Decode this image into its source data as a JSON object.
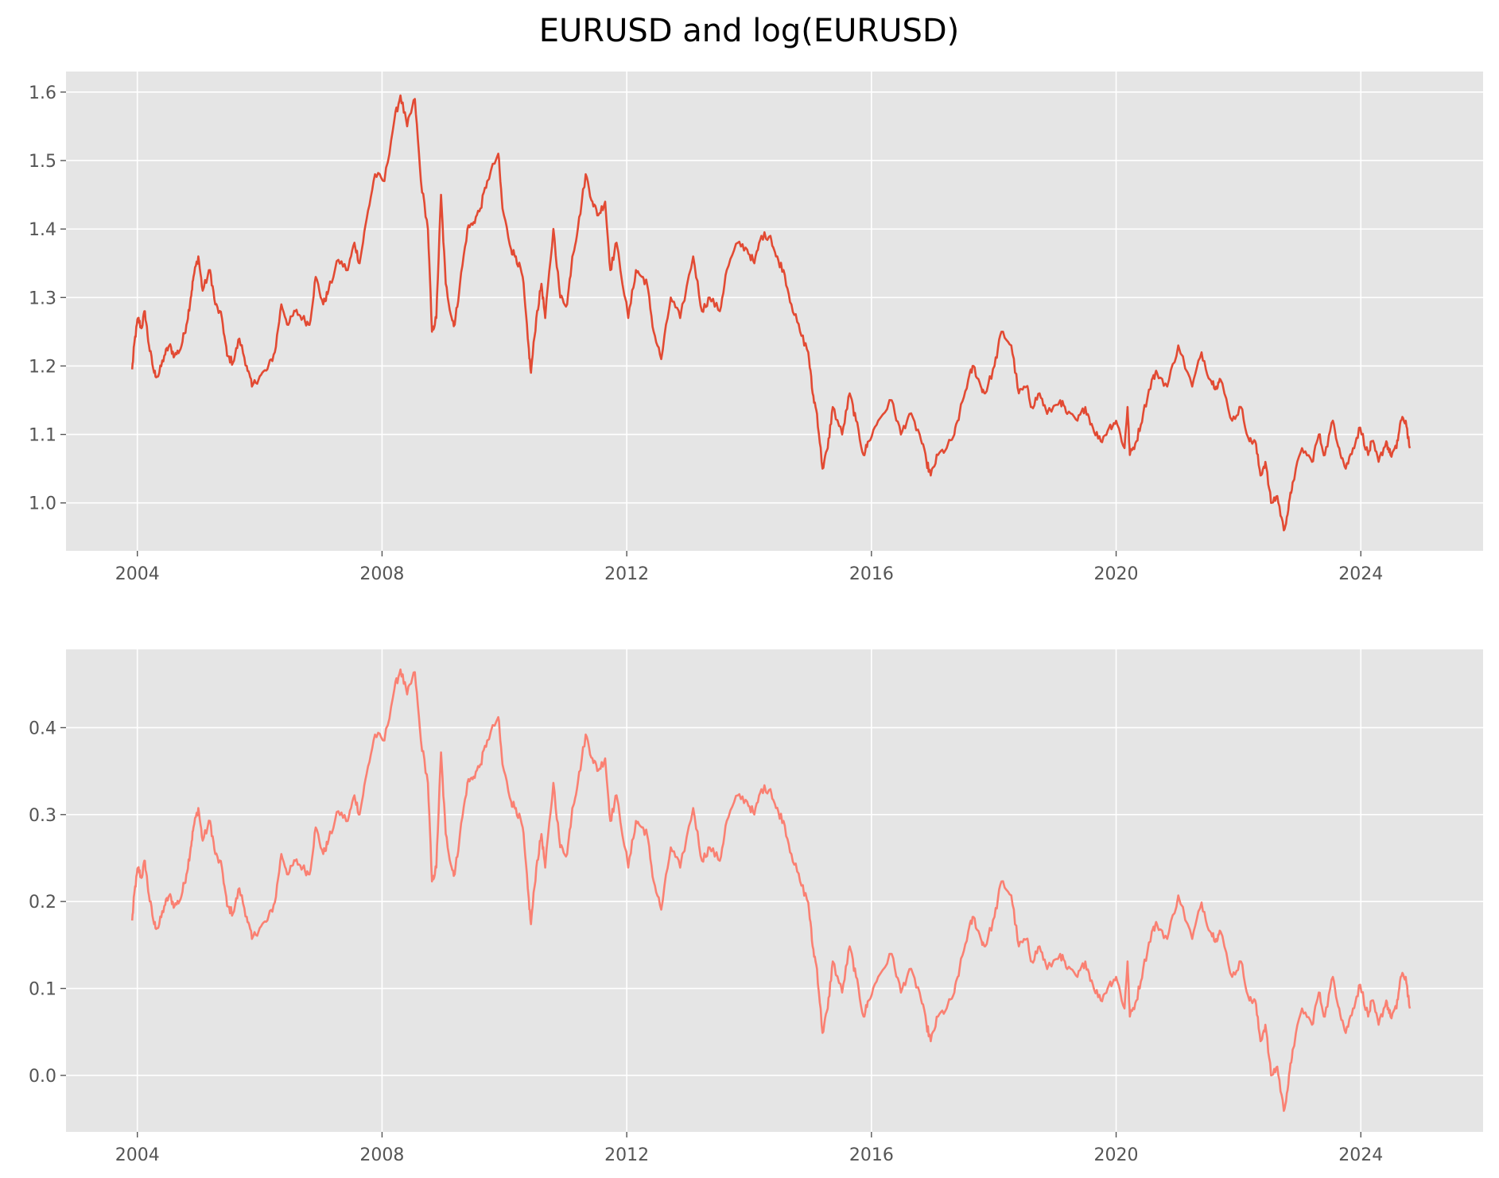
{
  "figure": {
    "title": "EURUSD and log(EURUSD)"
  },
  "chart_data": [
    {
      "type": "line",
      "series": [
        {
          "values": [
            [
              "2003-12-01",
              1.195
            ],
            [
              "2003-12-15",
              1.235
            ],
            [
              "2004-01-05",
              1.27
            ],
            [
              "2004-01-25",
              1.255
            ],
            [
              "2004-02-15",
              1.28
            ],
            [
              "2004-03-10",
              1.23
            ],
            [
              "2004-04-10",
              1.19
            ],
            [
              "2004-05-05",
              1.185
            ],
            [
              "2004-06-10",
              1.215
            ],
            [
              "2004-07-10",
              1.23
            ],
            [
              "2004-08-10",
              1.215
            ],
            [
              "2004-09-15",
              1.225
            ],
            [
              "2004-10-20",
              1.26
            ],
            [
              "2004-11-15",
              1.3
            ],
            [
              "2004-12-01",
              1.33
            ],
            [
              "2004-12-30",
              1.36
            ],
            [
              "2005-01-25",
              1.31
            ],
            [
              "2005-03-10",
              1.34
            ],
            [
              "2005-04-10",
              1.29
            ],
            [
              "2005-05-20",
              1.27
            ],
            [
              "2005-06-20",
              1.215
            ],
            [
              "2005-07-25",
              1.205
            ],
            [
              "2005-09-01",
              1.24
            ],
            [
              "2005-10-15",
              1.2
            ],
            [
              "2005-11-15",
              1.17
            ],
            [
              "2006-01-01",
              1.185
            ],
            [
              "2006-02-15",
              1.195
            ],
            [
              "2006-04-01",
              1.22
            ],
            [
              "2006-05-10",
              1.29
            ],
            [
              "2006-06-20",
              1.26
            ],
            [
              "2006-08-01",
              1.28
            ],
            [
              "2006-09-15",
              1.27
            ],
            [
              "2006-10-25",
              1.26
            ],
            [
              "2006-12-01",
              1.33
            ],
            [
              "2007-01-15",
              1.29
            ],
            [
              "2007-02-15",
              1.31
            ],
            [
              "2007-04-15",
              1.355
            ],
            [
              "2007-06-10",
              1.34
            ],
            [
              "2007-07-20",
              1.38
            ],
            [
              "2007-08-20",
              1.35
            ],
            [
              "2007-10-01",
              1.415
            ],
            [
              "2007-11-20",
              1.48
            ],
            [
              "2008-01-15",
              1.47
            ],
            [
              "2008-03-15",
              1.56
            ],
            [
              "2008-04-20",
              1.595
            ],
            [
              "2008-05-30",
              1.55
            ],
            [
              "2008-07-15",
              1.59
            ],
            [
              "2008-08-20",
              1.47
            ],
            [
              "2008-10-01",
              1.4
            ],
            [
              "2008-10-25",
              1.25
            ],
            [
              "2008-11-20",
              1.27
            ],
            [
              "2008-12-18",
              1.45
            ],
            [
              "2009-01-15",
              1.32
            ],
            [
              "2009-02-20",
              1.27
            ],
            [
              "2009-03-10",
              1.26
            ],
            [
              "2009-04-10",
              1.32
            ],
            [
              "2009-05-25",
              1.4
            ],
            [
              "2009-07-01",
              1.41
            ],
            [
              "2009-08-10",
              1.43
            ],
            [
              "2009-09-20",
              1.47
            ],
            [
              "2009-11-25",
              1.51
            ],
            [
              "2009-12-20",
              1.43
            ],
            [
              "2010-02-10",
              1.37
            ],
            [
              "2010-03-10",
              1.36
            ],
            [
              "2010-04-20",
              1.33
            ],
            [
              "2010-05-20",
              1.24
            ],
            [
              "2010-06-08",
              1.19
            ],
            [
              "2010-07-10",
              1.27
            ],
            [
              "2010-08-10",
              1.32
            ],
            [
              "2010-09-01",
              1.27
            ],
            [
              "2010-10-20",
              1.4
            ],
            [
              "2010-11-30",
              1.3
            ],
            [
              "2011-01-10",
              1.29
            ],
            [
              "2011-02-10",
              1.36
            ],
            [
              "2011-03-15",
              1.4
            ],
            [
              "2011-05-01",
              1.48
            ],
            [
              "2011-06-10",
              1.44
            ],
            [
              "2011-07-15",
              1.42
            ],
            [
              "2011-08-25",
              1.44
            ],
            [
              "2011-09-25",
              1.34
            ],
            [
              "2011-11-01",
              1.38
            ],
            [
              "2012-01-10",
              1.27
            ],
            [
              "2012-02-25",
              1.34
            ],
            [
              "2012-04-01",
              1.33
            ],
            [
              "2012-05-01",
              1.32
            ],
            [
              "2012-06-10",
              1.25
            ],
            [
              "2012-07-25",
              1.21
            ],
            [
              "2012-09-20",
              1.3
            ],
            [
              "2012-11-15",
              1.27
            ],
            [
              "2013-02-01",
              1.36
            ],
            [
              "2013-03-25",
              1.28
            ],
            [
              "2013-05-10",
              1.3
            ],
            [
              "2013-07-10",
              1.28
            ],
            [
              "2013-08-20",
              1.34
            ],
            [
              "2013-10-25",
              1.38
            ],
            [
              "2013-12-20",
              1.37
            ],
            [
              "2014-02-01",
              1.35
            ],
            [
              "2014-03-15",
              1.39
            ],
            [
              "2014-05-08",
              1.39
            ],
            [
              "2014-06-10",
              1.36
            ],
            [
              "2014-07-25",
              1.34
            ],
            [
              "2014-09-10",
              1.29
            ],
            [
              "2014-11-01",
              1.25
            ],
            [
              "2014-12-20",
              1.22
            ],
            [
              "2015-01-15",
              1.16
            ],
            [
              "2015-02-10",
              1.13
            ],
            [
              "2015-03-15",
              1.05
            ],
            [
              "2015-04-15",
              1.08
            ],
            [
              "2015-05-15",
              1.14
            ],
            [
              "2015-07-10",
              1.1
            ],
            [
              "2015-08-24",
              1.16
            ],
            [
              "2015-10-01",
              1.12
            ],
            [
              "2015-11-15",
              1.07
            ],
            [
              "2015-12-15",
              1.09
            ],
            [
              "2016-02-10",
              1.12
            ],
            [
              "2016-05-01",
              1.15
            ],
            [
              "2016-06-25",
              1.1
            ],
            [
              "2016-08-15",
              1.13
            ],
            [
              "2016-10-15",
              1.1
            ],
            [
              "2016-11-25",
              1.06
            ],
            [
              "2016-12-20",
              1.04
            ],
            [
              "2017-02-01",
              1.07
            ],
            [
              "2017-03-25",
              1.08
            ],
            [
              "2017-05-10",
              1.1
            ],
            [
              "2017-06-10",
              1.13
            ],
            [
              "2017-08-01",
              1.18
            ],
            [
              "2017-09-01",
              1.2
            ],
            [
              "2017-10-15",
              1.17
            ],
            [
              "2017-11-10",
              1.16
            ],
            [
              "2018-01-05",
              1.2
            ],
            [
              "2018-02-15",
              1.25
            ],
            [
              "2018-04-15",
              1.23
            ],
            [
              "2018-05-30",
              1.16
            ],
            [
              "2018-07-15",
              1.17
            ],
            [
              "2018-08-15",
              1.14
            ],
            [
              "2018-10-01",
              1.16
            ],
            [
              "2018-11-15",
              1.13
            ],
            [
              "2019-02-01",
              1.15
            ],
            [
              "2019-03-15",
              1.13
            ],
            [
              "2019-05-15",
              1.12
            ],
            [
              "2019-07-01",
              1.14
            ],
            [
              "2019-08-15",
              1.11
            ],
            [
              "2019-10-01",
              1.09
            ],
            [
              "2019-11-20",
              1.11
            ],
            [
              "2020-01-01",
              1.12
            ],
            [
              "2020-02-20",
              1.08
            ],
            [
              "2020-03-09",
              1.14
            ],
            [
              "2020-03-23",
              1.07
            ],
            [
              "2020-05-01",
              1.09
            ],
            [
              "2020-06-10",
              1.13
            ],
            [
              "2020-08-01",
              1.18
            ],
            [
              "2020-09-01",
              1.19
            ],
            [
              "2020-11-01",
              1.17
            ],
            [
              "2021-01-06",
              1.23
            ],
            [
              "2021-03-30",
              1.17
            ],
            [
              "2021-05-25",
              1.22
            ],
            [
              "2021-07-15",
              1.18
            ],
            [
              "2021-08-20",
              1.17
            ],
            [
              "2021-09-15",
              1.18
            ],
            [
              "2021-11-24",
              1.12
            ],
            [
              "2022-01-15",
              1.14
            ],
            [
              "2022-03-07",
              1.09
            ],
            [
              "2022-04-10",
              1.09
            ],
            [
              "2022-05-12",
              1.04
            ],
            [
              "2022-06-10",
              1.06
            ],
            [
              "2022-07-14",
              1.0
            ],
            [
              "2022-08-20",
              1.01
            ],
            [
              "2022-09-28",
              0.96
            ],
            [
              "2022-10-25",
              0.99
            ],
            [
              "2022-11-20",
              1.03
            ],
            [
              "2023-01-15",
              1.08
            ],
            [
              "2023-03-15",
              1.06
            ],
            [
              "2023-04-25",
              1.1
            ],
            [
              "2023-05-31",
              1.07
            ],
            [
              "2023-07-18",
              1.12
            ],
            [
              "2023-08-25",
              1.08
            ],
            [
              "2023-10-03",
              1.05
            ],
            [
              "2023-11-15",
              1.08
            ],
            [
              "2023-12-28",
              1.11
            ],
            [
              "2024-02-14",
              1.07
            ],
            [
              "2024-03-08",
              1.09
            ],
            [
              "2024-04-16",
              1.06
            ],
            [
              "2024-06-01",
              1.09
            ],
            [
              "2024-06-26",
              1.07
            ],
            [
              "2024-08-01",
              1.08
            ],
            [
              "2024-08-26",
              1.12
            ],
            [
              "2024-09-25",
              1.12
            ],
            [
              "2024-10-20",
              1.08
            ]
          ]
        }
      ],
      "xlim": [
        "2002-11-01",
        "2025-12-31"
      ],
      "ylim": [
        0.93,
        1.63
      ],
      "x_ticks": [
        "2004",
        "2008",
        "2012",
        "2016",
        "2020",
        "2024"
      ],
      "y_ticks": [
        "1.0",
        "1.1",
        "1.2",
        "1.3",
        "1.4",
        "1.5",
        "1.6"
      ],
      "grid": true,
      "colors": {
        "line": "#E24A33",
        "panel": "#E5E5E5",
        "grid": "#FFFFFF",
        "tick_text": "#555555"
      }
    },
    {
      "type": "line",
      "series": [
        {
          "transform": "natural log of the top panel's EURUSD values",
          "values": []
        }
      ],
      "xlim": [
        "2002-11-01",
        "2025-12-31"
      ],
      "ylim": [
        -0.065,
        0.49
      ],
      "x_ticks": [
        "2004",
        "2008",
        "2012",
        "2016",
        "2020",
        "2024"
      ],
      "y_ticks": [
        "0.0",
        "0.1",
        "0.2",
        "0.3",
        "0.4"
      ],
      "grid": true,
      "colors": {
        "line": "#FA8072",
        "panel": "#E5E5E5",
        "grid": "#FFFFFF",
        "tick_text": "#555555"
      }
    }
  ]
}
